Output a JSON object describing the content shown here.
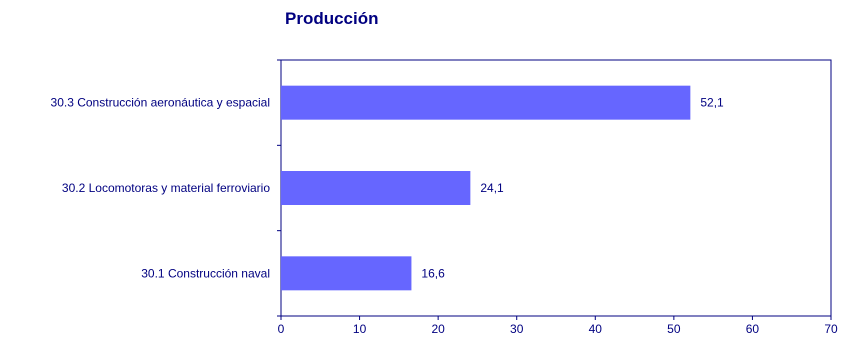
{
  "chart_data": {
    "type": "bar",
    "orientation": "horizontal",
    "title": "Producción",
    "categories": [
      "30.3 Construcción aeronáutica y espacial",
      "30.2 Locomotoras y material ferroviario",
      "30.1 Construcción naval"
    ],
    "values": [
      52.1,
      24.1,
      16.6
    ],
    "value_labels": [
      "52,1",
      "24,1",
      "16,6"
    ],
    "xlim": [
      0,
      70
    ],
    "xticks": [
      0,
      10,
      20,
      30,
      40,
      50,
      60,
      70
    ],
    "xlabel": "",
    "ylabel": "",
    "grid": false,
    "legend": "none",
    "colors": {
      "bar": "#6666FF",
      "text": "#000080",
      "axis": "#000080"
    }
  }
}
